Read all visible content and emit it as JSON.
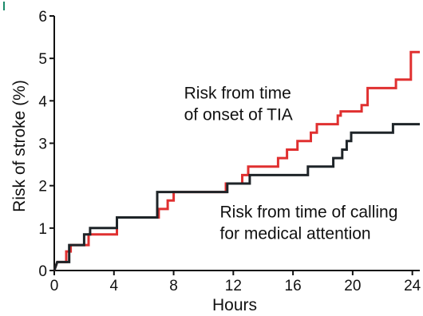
{
  "chart_data": {
    "type": "line",
    "xlabel": "Hours",
    "ylabel": "Risk of stroke (%)",
    "xlim": [
      0,
      24.5
    ],
    "ylim": [
      0,
      6
    ],
    "xticks": [
      0,
      4,
      8,
      12,
      16,
      20,
      24
    ],
    "yticks": [
      0,
      1,
      2,
      3,
      4,
      5,
      6
    ],
    "grid": false,
    "legend": "none",
    "series": [
      {
        "color": "#e03030",
        "step": true,
        "points": [
          [
            0,
            0
          ],
          [
            0.2,
            0.2
          ],
          [
            0.8,
            0.2
          ],
          [
            0.8,
            0.45
          ],
          [
            1.1,
            0.45
          ],
          [
            1.1,
            0.6
          ],
          [
            2.3,
            0.6
          ],
          [
            2.3,
            0.85
          ],
          [
            4.2,
            0.85
          ],
          [
            4.2,
            1.25
          ],
          [
            7.0,
            1.25
          ],
          [
            7.0,
            1.45
          ],
          [
            7.6,
            1.45
          ],
          [
            7.6,
            1.65
          ],
          [
            8.0,
            1.65
          ],
          [
            8.0,
            1.85
          ],
          [
            11.5,
            1.85
          ],
          [
            11.5,
            2.05
          ],
          [
            12.6,
            2.05
          ],
          [
            12.6,
            2.25
          ],
          [
            13.0,
            2.25
          ],
          [
            13.0,
            2.45
          ],
          [
            15.0,
            2.45
          ],
          [
            15.0,
            2.65
          ],
          [
            15.6,
            2.65
          ],
          [
            15.6,
            2.85
          ],
          [
            16.3,
            2.85
          ],
          [
            16.3,
            3.05
          ],
          [
            17.2,
            3.05
          ],
          [
            17.2,
            3.25
          ],
          [
            17.6,
            3.25
          ],
          [
            17.6,
            3.45
          ],
          [
            19.0,
            3.45
          ],
          [
            19.0,
            3.65
          ],
          [
            19.2,
            3.65
          ],
          [
            19.2,
            3.75
          ],
          [
            20.6,
            3.75
          ],
          [
            20.6,
            3.9
          ],
          [
            21.0,
            3.9
          ],
          [
            21.0,
            4.3
          ],
          [
            22.9,
            4.3
          ],
          [
            22.9,
            4.5
          ],
          [
            23.9,
            4.5
          ],
          [
            23.9,
            5.15
          ],
          [
            24.5,
            5.15
          ]
        ]
      },
      {
        "color": "#1e2428",
        "step": true,
        "points": [
          [
            0,
            0
          ],
          [
            0.2,
            0.2
          ],
          [
            1.0,
            0.2
          ],
          [
            1.0,
            0.6
          ],
          [
            2.0,
            0.6
          ],
          [
            2.0,
            0.85
          ],
          [
            2.4,
            0.85
          ],
          [
            2.4,
            1.0
          ],
          [
            4.2,
            1.0
          ],
          [
            4.2,
            1.25
          ],
          [
            6.9,
            1.25
          ],
          [
            6.9,
            1.85
          ],
          [
            11.6,
            1.85
          ],
          [
            11.6,
            2.05
          ],
          [
            13.1,
            2.05
          ],
          [
            13.1,
            2.25
          ],
          [
            17.0,
            2.25
          ],
          [
            17.0,
            2.45
          ],
          [
            18.7,
            2.45
          ],
          [
            18.7,
            2.65
          ],
          [
            19.3,
            2.65
          ],
          [
            19.3,
            2.85
          ],
          [
            19.6,
            2.85
          ],
          [
            19.6,
            3.05
          ],
          [
            19.9,
            3.05
          ],
          [
            19.9,
            3.25
          ],
          [
            22.7,
            3.25
          ],
          [
            22.7,
            3.45
          ],
          [
            24.5,
            3.45
          ]
        ]
      }
    ],
    "annotations": [
      {
        "lines": [
          "Risk from time",
          "of onset of TIA"
        ],
        "at": [
          8.7,
          4.05
        ]
      },
      {
        "lines": [
          "Risk from time of calling",
          "for medical attention"
        ],
        "at": [
          11.1,
          1.25
        ]
      }
    ]
  }
}
